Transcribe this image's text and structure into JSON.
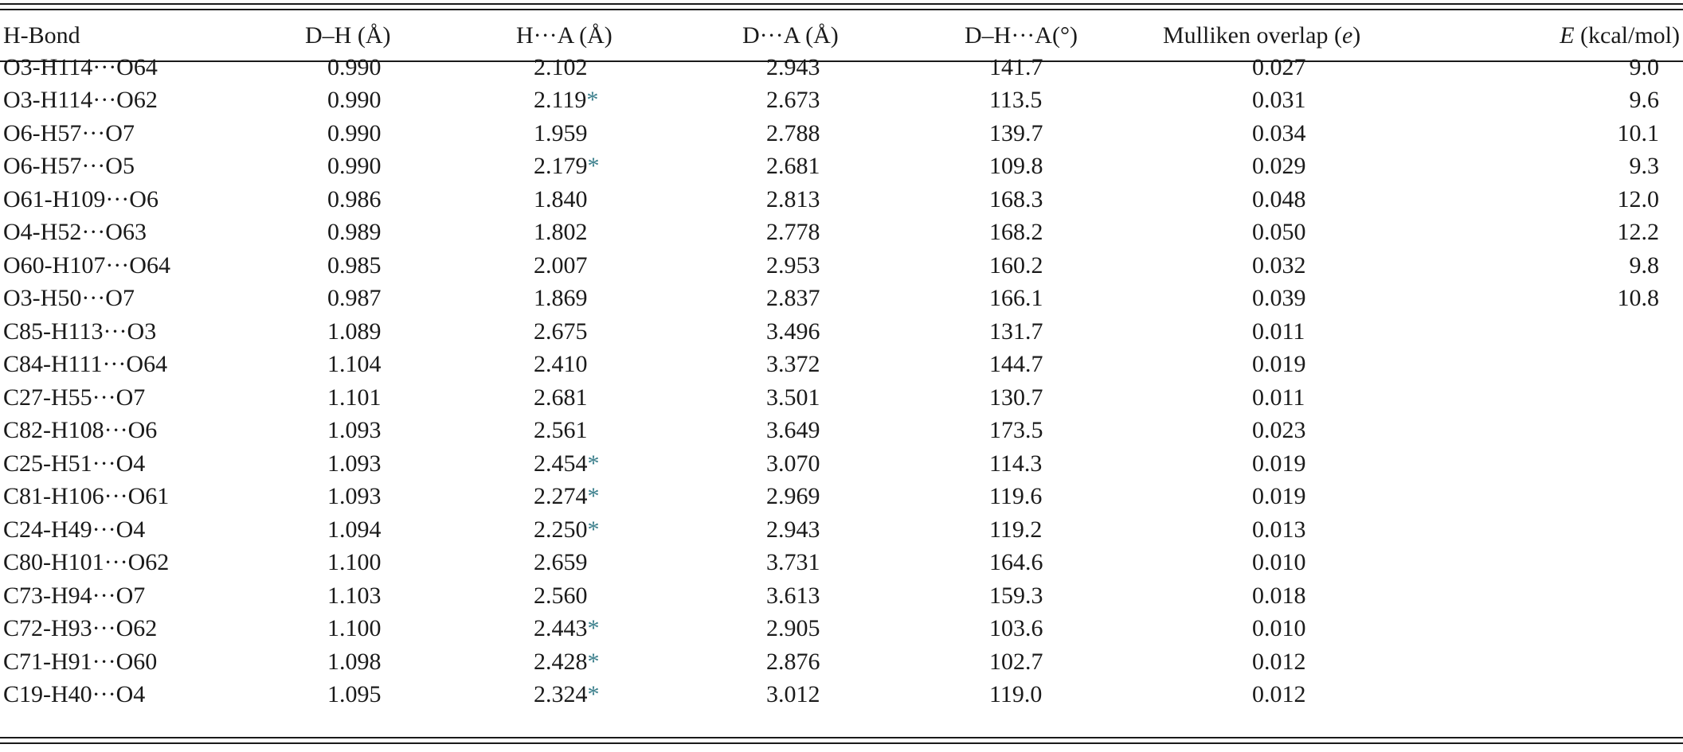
{
  "table": {
    "headers": [
      "H-Bond",
      "D–H (Å)",
      "H···A (Å)",
      "D···A (Å)",
      "D–H···A(°)",
      "Mulliken overlap (e)",
      "E (kcal/mol)"
    ],
    "header_parts": {
      "mulliken_text": "Mulliken overlap (",
      "mulliken_italic": "e",
      "mulliken_close": ")",
      "energy_italic": "E",
      "energy_text": " (kcal/mol)"
    },
    "marker": "*",
    "marker_color": "#3b7f8c",
    "rows": [
      {
        "bond": "O3-H114···O64",
        "dh": "0.990",
        "ha": "2.102",
        "ha_marked": false,
        "da": "2.943",
        "angle": "141.7",
        "overlap": "0.027",
        "energy": "9.0"
      },
      {
        "bond": "O3-H114···O62",
        "dh": "0.990",
        "ha": "2.119",
        "ha_marked": true,
        "da": "2.673",
        "angle": "113.5",
        "overlap": "0.031",
        "energy": "9.6"
      },
      {
        "bond": "O6-H57···O7",
        "dh": "0.990",
        "ha": "1.959",
        "ha_marked": false,
        "da": "2.788",
        "angle": "139.7",
        "overlap": "0.034",
        "energy": "10.1"
      },
      {
        "bond": "O6-H57···O5",
        "dh": "0.990",
        "ha": "2.179",
        "ha_marked": true,
        "da": "2.681",
        "angle": "109.8",
        "overlap": "0.029",
        "energy": "9.3"
      },
      {
        "bond": "O61-H109···O6",
        "dh": "0.986",
        "ha": "1.840",
        "ha_marked": false,
        "da": "2.813",
        "angle": "168.3",
        "overlap": "0.048",
        "energy": "12.0"
      },
      {
        "bond": "O4-H52···O63",
        "dh": "0.989",
        "ha": "1.802",
        "ha_marked": false,
        "da": "2.778",
        "angle": "168.2",
        "overlap": "0.050",
        "energy": "12.2"
      },
      {
        "bond": "O60-H107···O64",
        "dh": "0.985",
        "ha": "2.007",
        "ha_marked": false,
        "da": "2.953",
        "angle": "160.2",
        "overlap": "0.032",
        "energy": "9.8"
      },
      {
        "bond": "O3-H50···O7",
        "dh": "0.987",
        "ha": "1.869",
        "ha_marked": false,
        "da": "2.837",
        "angle": "166.1",
        "overlap": "0.039",
        "energy": "10.8"
      },
      {
        "bond": "C85-H113···O3",
        "dh": "1.089",
        "ha": "2.675",
        "ha_marked": false,
        "da": "3.496",
        "angle": "131.7",
        "overlap": "0.011",
        "energy": ""
      },
      {
        "bond": "C84-H111···O64",
        "dh": "1.104",
        "ha": "2.410",
        "ha_marked": false,
        "da": "3.372",
        "angle": "144.7",
        "overlap": "0.019",
        "energy": ""
      },
      {
        "bond": "C27-H55···O7",
        "dh": "1.101",
        "ha": "2.681",
        "ha_marked": false,
        "da": "3.501",
        "angle": "130.7",
        "overlap": "0.011",
        "energy": ""
      },
      {
        "bond": "C82-H108···O6",
        "dh": "1.093",
        "ha": "2.561",
        "ha_marked": false,
        "da": "3.649",
        "angle": "173.5",
        "overlap": "0.023",
        "energy": ""
      },
      {
        "bond": "C25-H51···O4",
        "dh": "1.093",
        "ha": "2.454",
        "ha_marked": true,
        "da": "3.070",
        "angle": "114.3",
        "overlap": "0.019",
        "energy": ""
      },
      {
        "bond": "C81-H106···O61",
        "dh": "1.093",
        "ha": "2.274",
        "ha_marked": true,
        "da": "2.969",
        "angle": "119.6",
        "overlap": "0.019",
        "energy": ""
      },
      {
        "bond": "C24-H49···O4",
        "dh": "1.094",
        "ha": "2.250",
        "ha_marked": true,
        "da": "2.943",
        "angle": "119.2",
        "overlap": "0.013",
        "energy": ""
      },
      {
        "bond": "C80-H101···O62",
        "dh": "1.100",
        "ha": "2.659",
        "ha_marked": false,
        "da": "3.731",
        "angle": "164.6",
        "overlap": "0.010",
        "energy": ""
      },
      {
        "bond": "C73-H94···O7",
        "dh": "1.103",
        "ha": "2.560",
        "ha_marked": false,
        "da": "3.613",
        "angle": "159.3",
        "overlap": "0.018",
        "energy": ""
      },
      {
        "bond": "C72-H93···O62",
        "dh": "1.100",
        "ha": "2.443",
        "ha_marked": true,
        "da": "2.905",
        "angle": "103.6",
        "overlap": "0.010",
        "energy": ""
      },
      {
        "bond": "C71-H91···O60",
        "dh": "1.098",
        "ha": "2.428",
        "ha_marked": true,
        "da": "2.876",
        "angle": "102.7",
        "overlap": "0.012",
        "energy": ""
      },
      {
        "bond": "C19-H40···O4",
        "dh": "1.095",
        "ha": "2.324",
        "ha_marked": true,
        "da": "3.012",
        "angle": "119.0",
        "overlap": "0.012",
        "energy": ""
      }
    ]
  }
}
